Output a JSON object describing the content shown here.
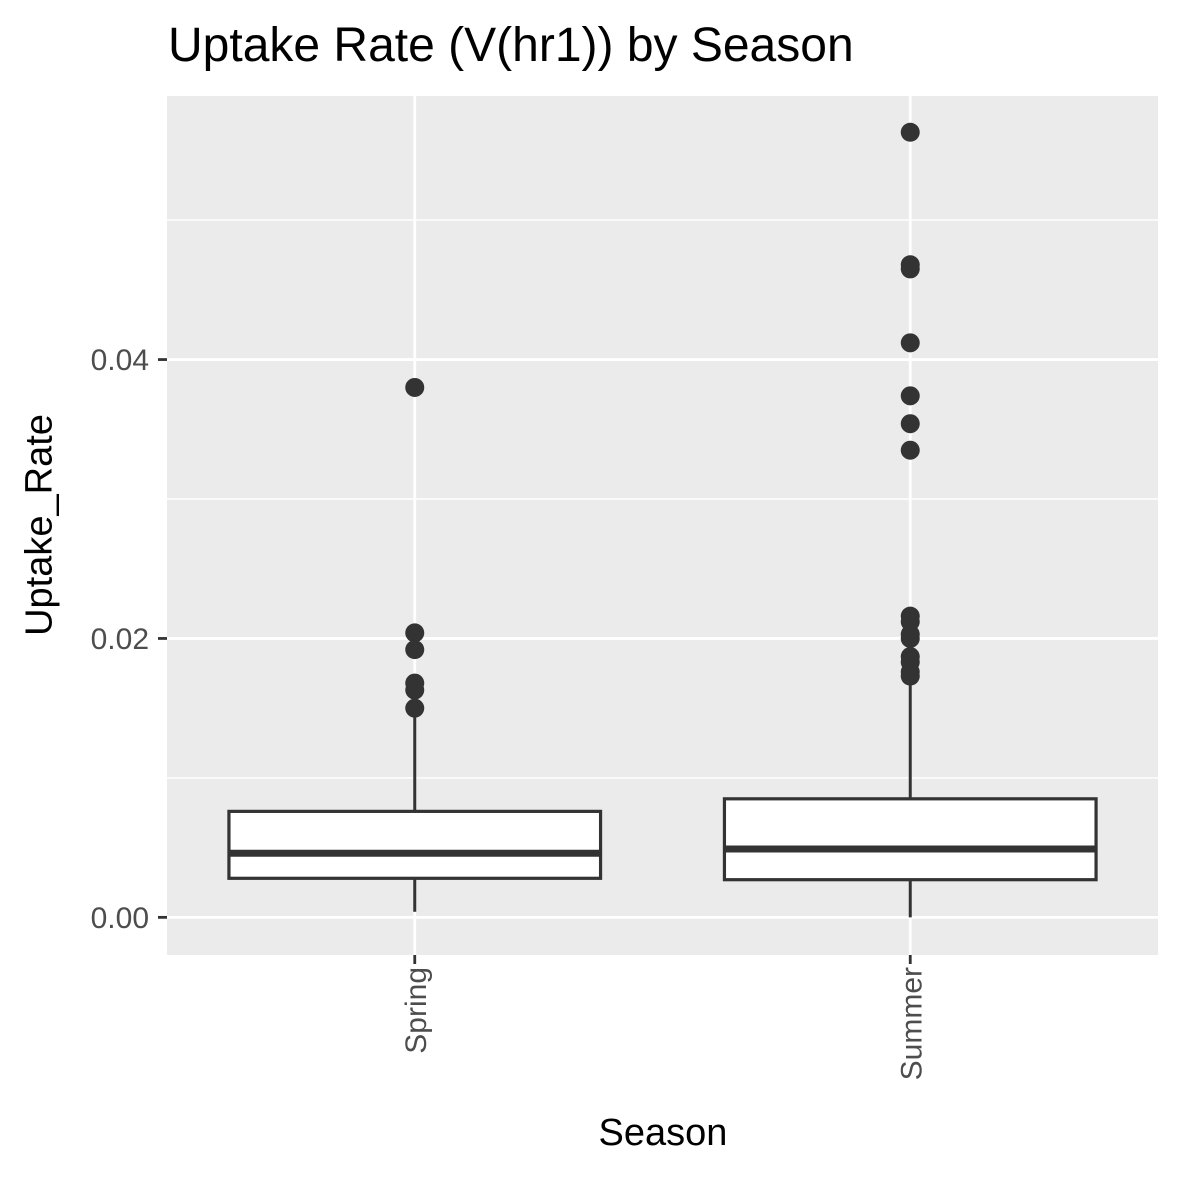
{
  "chart_data": {
    "type": "boxplot",
    "title": "Uptake Rate (V(hr1)) by Season",
    "xlabel": "Season",
    "ylabel": "Uptake_Rate",
    "categories": [
      "Spring",
      "Summer"
    ],
    "ylim": [
      -0.0027,
      0.0589
    ],
    "y_ticks": [
      {
        "value": 0.0,
        "label": "0.00"
      },
      {
        "value": 0.02,
        "label": "0.02"
      },
      {
        "value": 0.04,
        "label": "0.04"
      }
    ],
    "y_minor_gridlines": [
      0.01,
      0.03,
      0.05
    ],
    "grid": true,
    "panel_background": "#EBEBEB",
    "grid_color": "#FFFFFF",
    "box_fill": "#FFFFFF",
    "line_color": "#333333",
    "boxes": [
      {
        "category": "Spring",
        "whisker_low": 0.0004,
        "q1": 0.0028,
        "median": 0.0046,
        "q3": 0.0076,
        "whisker_high": 0.0148,
        "outliers": [
          0.038,
          0.0204,
          0.0192,
          0.0168,
          0.0163,
          0.015
        ]
      },
      {
        "category": "Summer",
        "whisker_low": 0.0,
        "q1": 0.0027,
        "median": 0.0049,
        "q3": 0.0085,
        "whisker_high": 0.017,
        "outliers": [
          0.0563,
          0.0468,
          0.0465,
          0.0412,
          0.0374,
          0.0354,
          0.0335,
          0.0216,
          0.0212,
          0.0203,
          0.02,
          0.0187,
          0.0183,
          0.0176,
          0.0173
        ]
      }
    ]
  }
}
